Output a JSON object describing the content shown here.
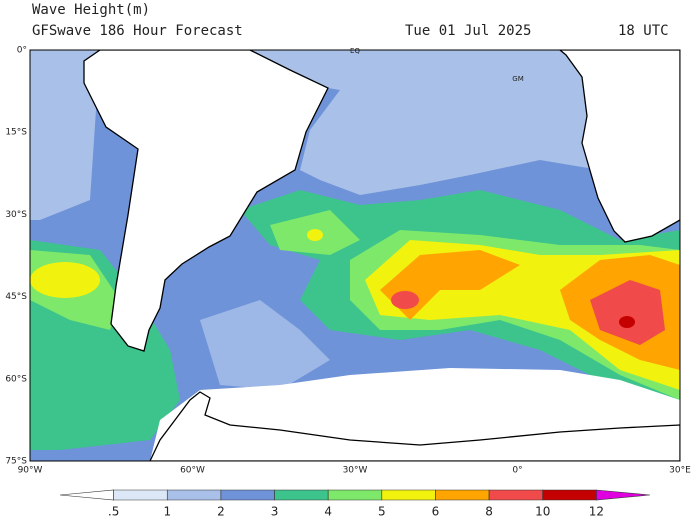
{
  "header": {
    "title": "Wave Height(m)",
    "subtitle": "GFSwave 186 Hour Forecast",
    "date": "Tue 01 Jul 2025",
    "time": "18 UTC"
  },
  "map": {
    "lat_labels": [
      "0°",
      "15°S",
      "30°S",
      "45°S",
      "60°S",
      "75°S"
    ],
    "lon_labels": [
      "90°W",
      "60°W",
      "30°W",
      "0°",
      "30°E"
    ],
    "place_labels": [
      "EQ",
      "GM"
    ]
  },
  "colorbar": {
    "labels": [
      ".5",
      "1",
      "2",
      "3",
      "4",
      "5",
      "6",
      "8",
      "10",
      "12"
    ],
    "colors": [
      "#ffffff",
      "#dce8f7",
      "#a9c0e8",
      "#6f93d9",
      "#3cc48c",
      "#7ee86a",
      "#f2f20f",
      "#ffa400",
      "#f04a4a",
      "#c40000",
      "#e000e0"
    ]
  }
}
